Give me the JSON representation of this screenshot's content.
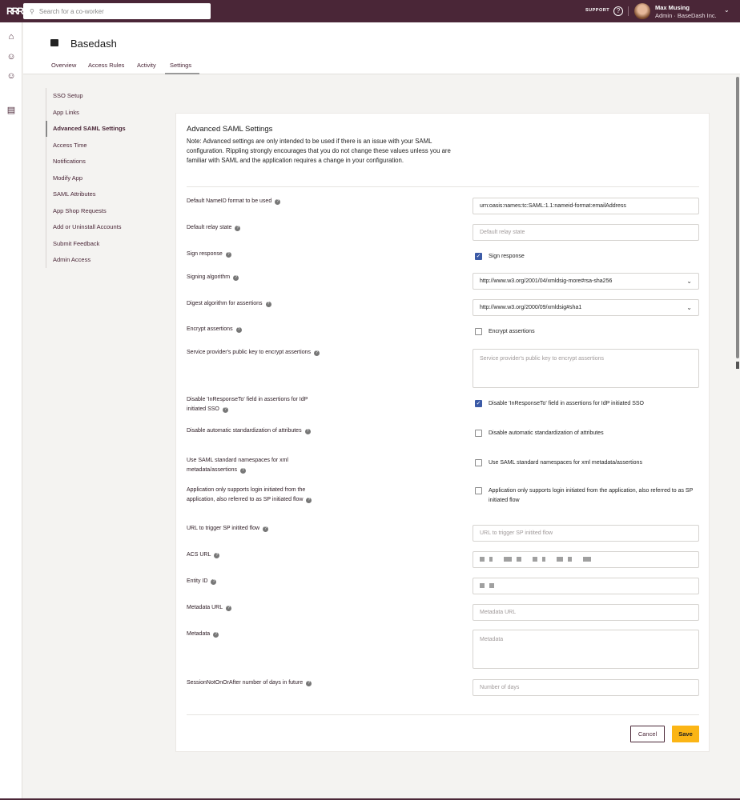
{
  "topbar": {
    "logo": "RRR",
    "search_placeholder": "Search for a co-worker",
    "support_label": "SUPPORT",
    "user_name": "Max Musing",
    "user_role": "Admin · BaseDash Inc.",
    "help_icon": "question-circle-icon",
    "brand_color": "#4a2637"
  },
  "app": {
    "name": "Basedash",
    "tabs": [
      "Overview",
      "Access Rules",
      "Activity",
      "Settings"
    ],
    "active_tab": "Settings"
  },
  "sidenav": {
    "items": [
      "SSO Setup",
      "App Links",
      "Advanced SAML Settings",
      "Access Time",
      "Notifications",
      "Modify App",
      "SAML Attributes",
      "App Shop Requests",
      "Add or Uninstall Accounts",
      "Submit Feedback",
      "Admin Access"
    ],
    "active": "Advanced SAML Settings"
  },
  "card": {
    "title": "Advanced SAML Settings",
    "note": "Note: Advanced settings are only intended to be used if there is an issue with your SAML configuration. Rippling strongly encourages that you do not change these values unless you are familiar with SAML and the application requires a change in your configuration.",
    "fields": [
      {
        "label": "Default NameID format to be used",
        "type": "input",
        "value": "urn:oasis:names:tc:SAML:1.1:nameid-format:emailAddress"
      },
      {
        "label": "Default relay state",
        "type": "input",
        "placeholder": "Default relay state"
      },
      {
        "label": "Sign response",
        "type": "checkbox",
        "checked": true,
        "text": "Sign response"
      },
      {
        "label": "Signing algorithm",
        "type": "select",
        "value": "http://www.w3.org/2001/04/xmldsig-more#rsa-sha256"
      },
      {
        "label": "Digest algorithm for assertions",
        "type": "select",
        "value": "http://www.w3.org/2000/09/xmldsig#sha1"
      },
      {
        "label": "Encrypt assertions",
        "type": "checkbox",
        "checked": false,
        "text": "Encrypt assertions"
      },
      {
        "label": "Service provider's public key to encrypt assertions",
        "type": "textarea",
        "placeholder": "Service provider's public key to encrypt assertions"
      },
      {
        "label": "Disable 'InResponseTo' field in assertions for IdP initiated SSO",
        "type": "checkbox",
        "checked": true,
        "text": "Disable 'InResponseTo' field in assertions for IdP initiated SSO"
      },
      {
        "label": "Disable automatic standardization of attributes",
        "type": "checkbox",
        "checked": false,
        "text": "Disable automatic standardization of attributes"
      },
      {
        "label": "Use SAML standard namespaces for xml metadata/assertions",
        "type": "checkbox",
        "checked": false,
        "text": "Use SAML standard namespaces for xml metadata/assertions"
      },
      {
        "label": "Application only supports login initiated from the application, also referred to as SP initiated flow",
        "type": "checkbox",
        "checked": false,
        "text": "Application only supports login initiated from the application, also referred to as SP initiated flow"
      },
      {
        "label": "URL to trigger SP initited flow",
        "type": "input",
        "placeholder": "URL to trigger SP initited flow"
      },
      {
        "label": "ACS URL",
        "type": "redacted"
      },
      {
        "label": "Entity ID",
        "type": "redacted"
      },
      {
        "label": "Metadata URL",
        "type": "input",
        "placeholder": "Metadata URL"
      },
      {
        "label": "Metadata",
        "type": "textarea",
        "placeholder": "Metadata"
      },
      {
        "label": "SessionNotOnOrAfter number of days in future",
        "type": "input",
        "placeholder": "Number of days"
      }
    ],
    "cancel_label": "Cancel",
    "save_label": "Save",
    "save_color": "#fbb515"
  }
}
